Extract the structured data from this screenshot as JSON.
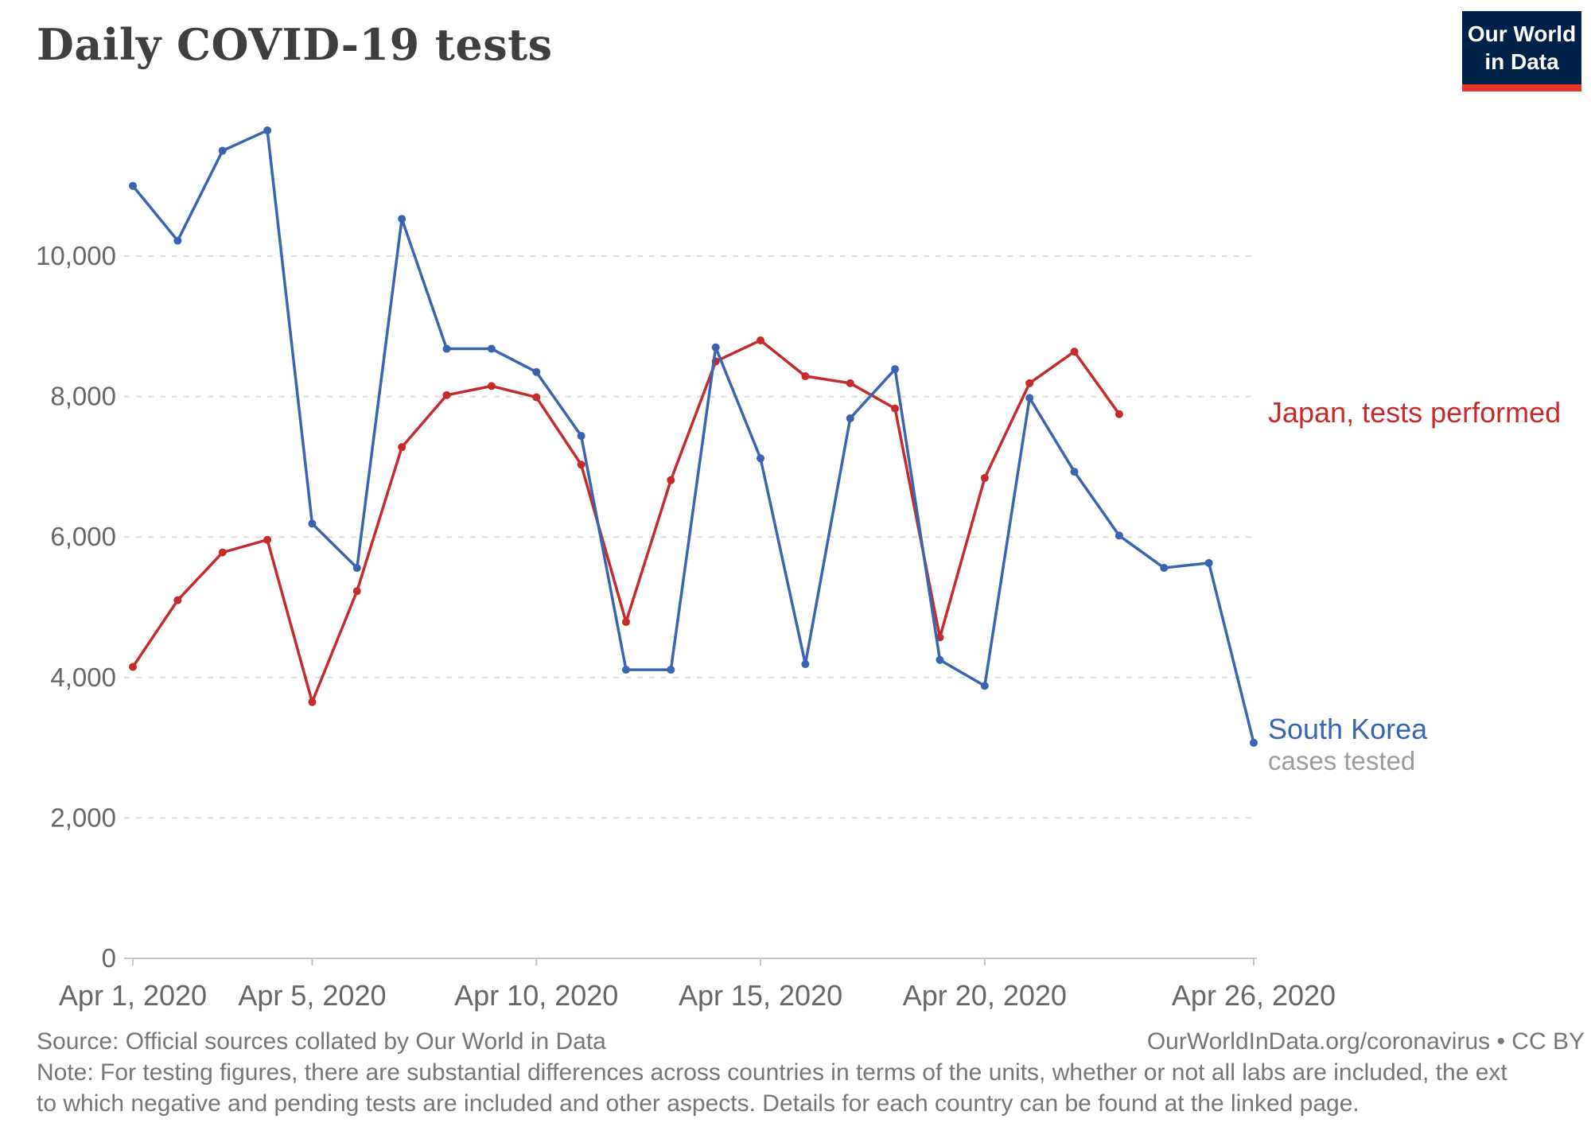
{
  "colors": {
    "japan": "#C62B2B",
    "south_korea": "#3A64AF",
    "gridline": "#dcdcdc",
    "axis_line": "#c6c6c6",
    "axis_text": "#666666",
    "footer_text": "#757575",
    "sublabel_gray": "#9b9b9b",
    "title_text": "#3f3f3f",
    "logo_bg": "#002147",
    "logo_bar": "#e8342c"
  },
  "logo": {
    "line1": "Our World",
    "line2": "in Data"
  },
  "chart_data": {
    "type": "line",
    "title": "Daily COVID-19 tests",
    "xlabel": "",
    "ylabel": "",
    "x_type": "date",
    "x_range": [
      "Apr 1, 2020",
      "Apr 26, 2020"
    ],
    "ylim": [
      0,
      11800
    ],
    "grid": "dashed horizontal gridlines at y ticks",
    "legend": "inline end-of-line labels at right",
    "y_ticks": [
      {
        "value": 0,
        "label": "0"
      },
      {
        "value": 2000,
        "label": "2,000"
      },
      {
        "value": 4000,
        "label": "4,000"
      },
      {
        "value": 6000,
        "label": "6,000"
      },
      {
        "value": 8000,
        "label": "8,000"
      },
      {
        "value": 10000,
        "label": "10,000"
      }
    ],
    "x_ticks": [
      {
        "day": 1,
        "label": "Apr 1, 2020"
      },
      {
        "day": 5,
        "label": "Apr 5, 2020"
      },
      {
        "day": 10,
        "label": "Apr 10, 2020"
      },
      {
        "day": 15,
        "label": "Apr 15, 2020"
      },
      {
        "day": 20,
        "label": "Apr 20, 2020"
      },
      {
        "day": 26,
        "label": "Apr 26, 2020"
      }
    ],
    "series": [
      {
        "id": "japan",
        "name": "Japan, tests performed",
        "color": "#C62B2B",
        "start_day": 1,
        "values": [
          4150,
          5100,
          5780,
          5960,
          3650,
          5230,
          7280,
          8020,
          8150,
          7990,
          7030,
          4790,
          6810,
          8500,
          8800,
          8290,
          8190,
          7830,
          4570,
          6840,
          8190,
          8640,
          7750
        ]
      },
      {
        "id": "south-korea",
        "name": "South Korea, cases tested",
        "color": "#3A64AF",
        "start_day": 1,
        "values": [
          11000,
          10220,
          11500,
          11790,
          6190,
          5560,
          10530,
          8680,
          8680,
          8350,
          7440,
          4110,
          4110,
          8700,
          7120,
          4190,
          7690,
          8390,
          4250,
          3880,
          7980,
          6930,
          6020,
          5560,
          5630,
          3070
        ]
      }
    ]
  },
  "annotations": {
    "japan_label": "Japan, tests performed",
    "korea_label": "South Korea",
    "korea_sublabel": "cases tested"
  },
  "footer": {
    "source": "Source: Official sources collated by Our World in Data",
    "attribution": "OurWorldInData.org/coronavirus • CC BY",
    "note_line1": "Note: For testing figures, there are substantial differences across countries in terms of the units, whether or not all labs are included, the ext",
    "note_line2": "to which negative and pending tests are included and other aspects. Details for each country can be found at the linked page."
  }
}
